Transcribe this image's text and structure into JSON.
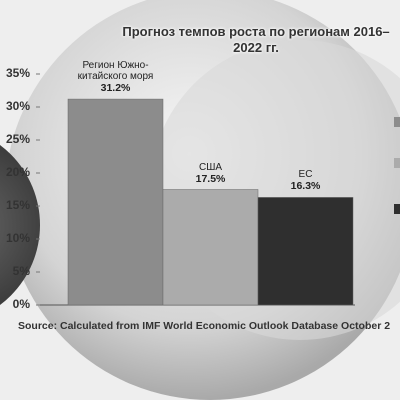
{
  "chart_data": {
    "type": "bar",
    "title": "Прогноз темпов роста по регионам 2016–2022 гг.",
    "categories": [
      "Регион Южно-китайского моря",
      "США",
      "ЕС"
    ],
    "values": [
      31.2,
      17.5,
      16.3
    ],
    "value_labels": [
      "31.2%",
      "17.5%",
      "16.3%"
    ],
    "colors": [
      "#8c8c8c",
      "#ababab",
      "#2f2f2f"
    ],
    "ylim": [
      0,
      35
    ],
    "yticks": [
      {
        "value": 0,
        "label": "0%"
      },
      {
        "value": 5,
        "label": "5%"
      },
      {
        "value": 10,
        "label": "10%"
      },
      {
        "value": 15,
        "label": "15%"
      },
      {
        "value": 20,
        "label": "20%"
      },
      {
        "value": 25,
        "label": "25%"
      },
      {
        "value": 30,
        "label": "30%"
      },
      {
        "value": 35,
        "label": "35%"
      }
    ],
    "source": "Source: Calculated from IMF World Economic Outlook Database October 2"
  }
}
